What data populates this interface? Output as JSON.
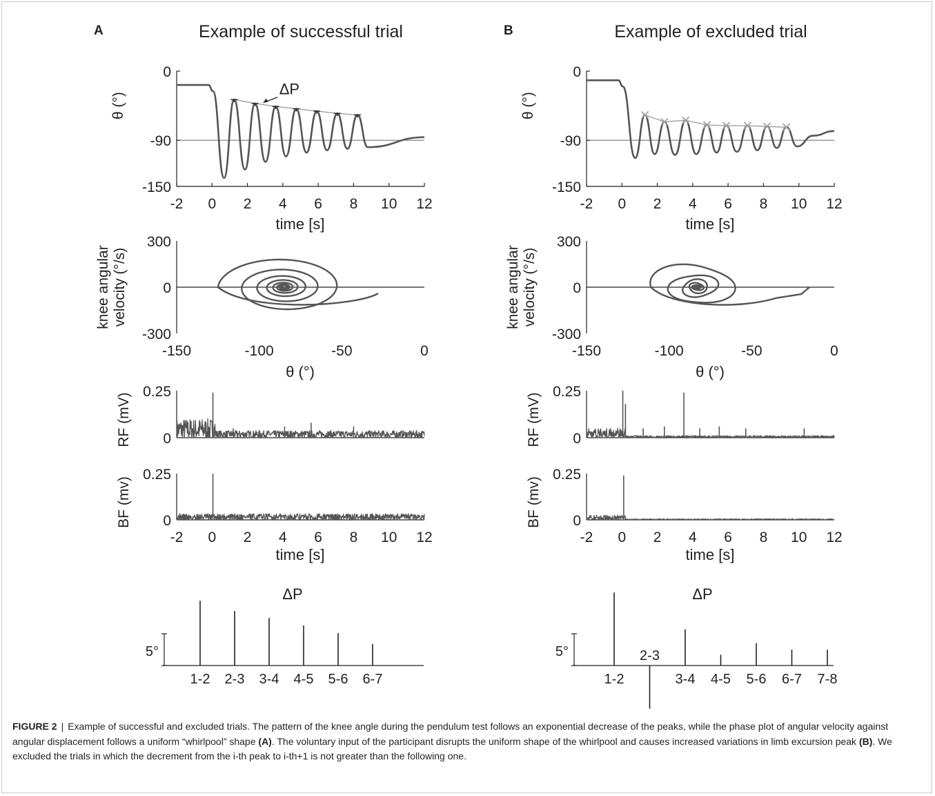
{
  "figure": {
    "panels": [
      {
        "letter": "A",
        "title": "Example of successful trial",
        "angle": {
          "ylabel": "θ (°)",
          "yticks": [
            "0",
            "-90",
            "-150"
          ],
          "xticks": [
            "-2",
            "0",
            "2",
            "4",
            "6",
            "8",
            "10",
            "12"
          ],
          "xlabel": "time [s]",
          "annotation": "ΔP",
          "xlim": [
            -2,
            12
          ],
          "ylim": [
            -150,
            0
          ],
          "baseline": -90,
          "start": -18,
          "peaks_t": [
            1.25,
            2.43,
            3.6,
            4.76,
            5.92,
            7.08,
            8.22
          ],
          "peaks": [
            -37,
            -42,
            -46,
            -49,
            -52,
            -55,
            -57
          ],
          "troughs_t": [
            0.68,
            1.86,
            3.02,
            4.18,
            5.34,
            6.5,
            7.65,
            8.8
          ],
          "troughs": [
            -139,
            -128,
            -118,
            -111,
            -106,
            -103,
            -101,
            -99
          ]
        },
        "phase": {
          "ylabel": [
            "knee angular",
            "velocity (°/s)"
          ],
          "yticks": [
            "300",
            "0",
            "-300"
          ],
          "xticks": [
            "-150",
            "-100",
            "-50",
            "0"
          ],
          "xlabel": "θ (°)",
          "xlim": [
            -150,
            0
          ],
          "ylim": [
            -300,
            300
          ]
        },
        "emg_rf": {
          "ylabel": "RF (mV)",
          "yticks": [
            "0.25",
            "0"
          ],
          "ylim": [
            0,
            0.25
          ],
          "spikes_t": [
            0.05,
            1.2,
            4.1,
            5.6,
            8.0
          ],
          "spikes": [
            0.24,
            0.05,
            0.06,
            0.08,
            0.06
          ],
          "noise_pre": 0.12,
          "noise_post": 0.04
        },
        "emg_bf": {
          "ylabel": "BF (mv)",
          "yticks": [
            "0.25",
            "0"
          ],
          "ylim": [
            0,
            0.25
          ],
          "xticks": [
            "-2",
            "0",
            "2",
            "4",
            "6",
            "8",
            "10",
            "12"
          ],
          "xlabel": "time [s]",
          "spikes_t": [
            0.05
          ],
          "spikes": [
            0.25
          ],
          "noise_pre": 0.04,
          "noise_post": 0.035
        },
        "dp": {
          "title": "ΔP",
          "scale_label": "5°",
          "scale_value": 5,
          "categories": [
            "1-2",
            "2-3",
            "3-4",
            "4-5",
            "5-6",
            "6-7"
          ],
          "values": [
            10.2,
            8.6,
            7.5,
            6.3,
            5.1,
            3.4
          ]
        }
      },
      {
        "letter": "B",
        "title": "Example of excluded trial",
        "angle": {
          "ylabel": "θ (°)",
          "yticks": [
            "0",
            "-90",
            "-150"
          ],
          "xticks": [
            "-2",
            "0",
            "2",
            "4",
            "6",
            "8",
            "10",
            "12"
          ],
          "xlabel": "time [s]",
          "xlim": [
            -2,
            12
          ],
          "ylim": [
            -150,
            0
          ],
          "baseline": -90,
          "start": -12,
          "peaks_t": [
            1.3,
            2.4,
            3.6,
            4.8,
            5.9,
            7.1,
            8.2,
            9.3
          ],
          "peaks": [
            -57,
            -66,
            -64,
            -70,
            -71,
            -71,
            -72,
            -73
          ],
          "troughs_t": [
            0.75,
            1.85,
            3.0,
            4.2,
            5.35,
            6.5,
            7.65,
            8.75,
            9.9,
            10.8
          ],
          "troughs": [
            -113,
            -108,
            -109,
            -108,
            -106,
            -105,
            -103,
            -100,
            -98,
            -84
          ]
        },
        "phase": {
          "ylabel": [
            "knee angular",
            "velocity (°/s)"
          ],
          "yticks": [
            "300",
            "0",
            "-300"
          ],
          "xticks": [
            "-150",
            "-100",
            "-50",
            "0"
          ],
          "xlabel": "θ (°)",
          "xlim": [
            -150,
            0
          ],
          "ylim": [
            -300,
            300
          ]
        },
        "emg_rf": {
          "ylabel": "RF (mV)",
          "yticks": [
            "0.25",
            "0"
          ],
          "ylim": [
            0,
            0.25
          ],
          "spikes_t": [
            0.05,
            0.2,
            1.2,
            2.4,
            3.5,
            4.4,
            5.5,
            7.0,
            10.3
          ],
          "spikes": [
            0.25,
            0.18,
            0.05,
            0.06,
            0.24,
            0.05,
            0.06,
            0.05,
            0.05
          ],
          "noise_pre": 0.06,
          "noise_post": 0.012
        },
        "emg_bf": {
          "ylabel": "BF (mv)",
          "yticks": [
            "0.25",
            "0"
          ],
          "ylim": [
            0,
            0.25
          ],
          "xticks": [
            "-2",
            "0",
            "2",
            "4",
            "6",
            "8",
            "10",
            "12"
          ],
          "xlabel": "time [s]",
          "spikes_t": [
            0.1
          ],
          "spikes": [
            0.24
          ],
          "noise_pre": 0.03,
          "noise_post": 0.006
        },
        "dp": {
          "title": "ΔP",
          "scale_label": "5°",
          "scale_value": 5,
          "categories": [
            "1-2",
            "2-3",
            "3-4",
            "4-5",
            "5-6",
            "6-7",
            "7-8"
          ],
          "values": [
            11.5,
            -6.8,
            5.7,
            1.7,
            3.5,
            2.5,
            2.5
          ]
        }
      }
    ]
  },
  "caption": {
    "label": "FIGURE 2",
    "separator": "|",
    "part1": "Example of successful and excluded trials. The pattern of the knee angle during the pendulum test follows an exponential decrease of the peaks, while the phase plot of angular velocity against angular displacement follows a uniform “whirlpool” shape",
    "ref_a": "(A)",
    "part2": ". The voluntary input of the participant disrupts the uniform shape of the whirlpool and causes increased variations in limb excursion peak",
    "ref_b": "(B)",
    "part3": ". We excluded the trials in which the decrement from the i-th peak to i-th+1 is not greater than the following one."
  },
  "colors": {
    "trace": "#555555",
    "marker": "#a0a0a0",
    "axis": "#222222",
    "text": "#231f20"
  }
}
